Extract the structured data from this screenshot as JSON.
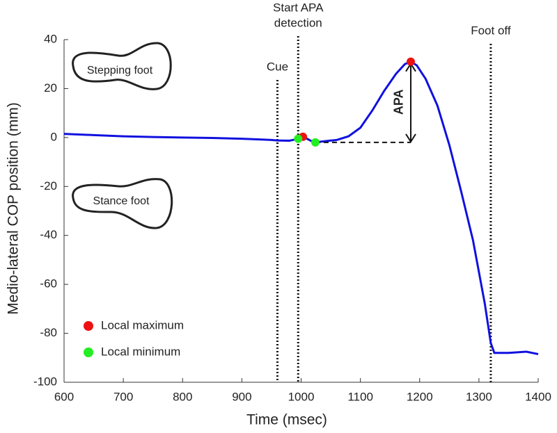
{
  "chart_data": {
    "type": "line",
    "xlabel": "Time (msec)",
    "ylabel": "Medio-lateral COP position (mm)",
    "xlim": [
      600,
      1400
    ],
    "xticks": [
      600,
      700,
      800,
      900,
      1000,
      1100,
      1200,
      1300,
      1400
    ],
    "ylim": [
      -100,
      40
    ],
    "yticks": [
      40,
      20,
      0,
      -20,
      -40,
      -60,
      -80,
      -100
    ],
    "x": [
      600,
      650,
      700,
      750,
      800,
      850,
      900,
      950,
      960,
      980,
      990,
      995,
      1000,
      1003,
      1010,
      1020,
      1024,
      1040,
      1060,
      1080,
      1100,
      1120,
      1140,
      1160,
      1175,
      1185,
      1195,
      1210,
      1230,
      1250,
      1270,
      1290,
      1300,
      1310,
      1320,
      1326,
      1335,
      1350,
      1380,
      1400
    ],
    "series": [
      {
        "color": "#1010e0",
        "values": [
          1.5,
          1.0,
          0.5,
          0.2,
          0,
          -0.2,
          -0.5,
          -1,
          -1.2,
          -1.3,
          -0.8,
          -0.5,
          0,
          0.3,
          -0.5,
          -1.8,
          -2,
          -1.5,
          -1,
          0.5,
          4,
          11,
          19,
          26,
          30,
          31,
          29.5,
          24,
          13,
          -3,
          -22,
          -42,
          -55,
          -68,
          -84,
          -88,
          -88,
          -88,
          -87.5,
          -88.5
        ]
      }
    ],
    "markers": [
      {
        "name": "Local maximum",
        "color": "#ee1111",
        "x": [
          1003,
          1185
        ],
        "values": [
          0.3,
          31
        ]
      },
      {
        "name": "Local minimum",
        "color": "#22ee22",
        "x": [
          995,
          1024
        ],
        "values": [
          -0.5,
          -2
        ]
      }
    ],
    "vlines": [
      {
        "x": 960,
        "label": [
          "Cue"
        ]
      },
      {
        "x": 995,
        "label": [
          "Start APA",
          "detection"
        ]
      },
      {
        "x": 1320,
        "label": [
          "Foot off"
        ]
      }
    ],
    "apa_label": "APA",
    "feet": [
      "Stepping foot",
      "Stance foot"
    ]
  }
}
